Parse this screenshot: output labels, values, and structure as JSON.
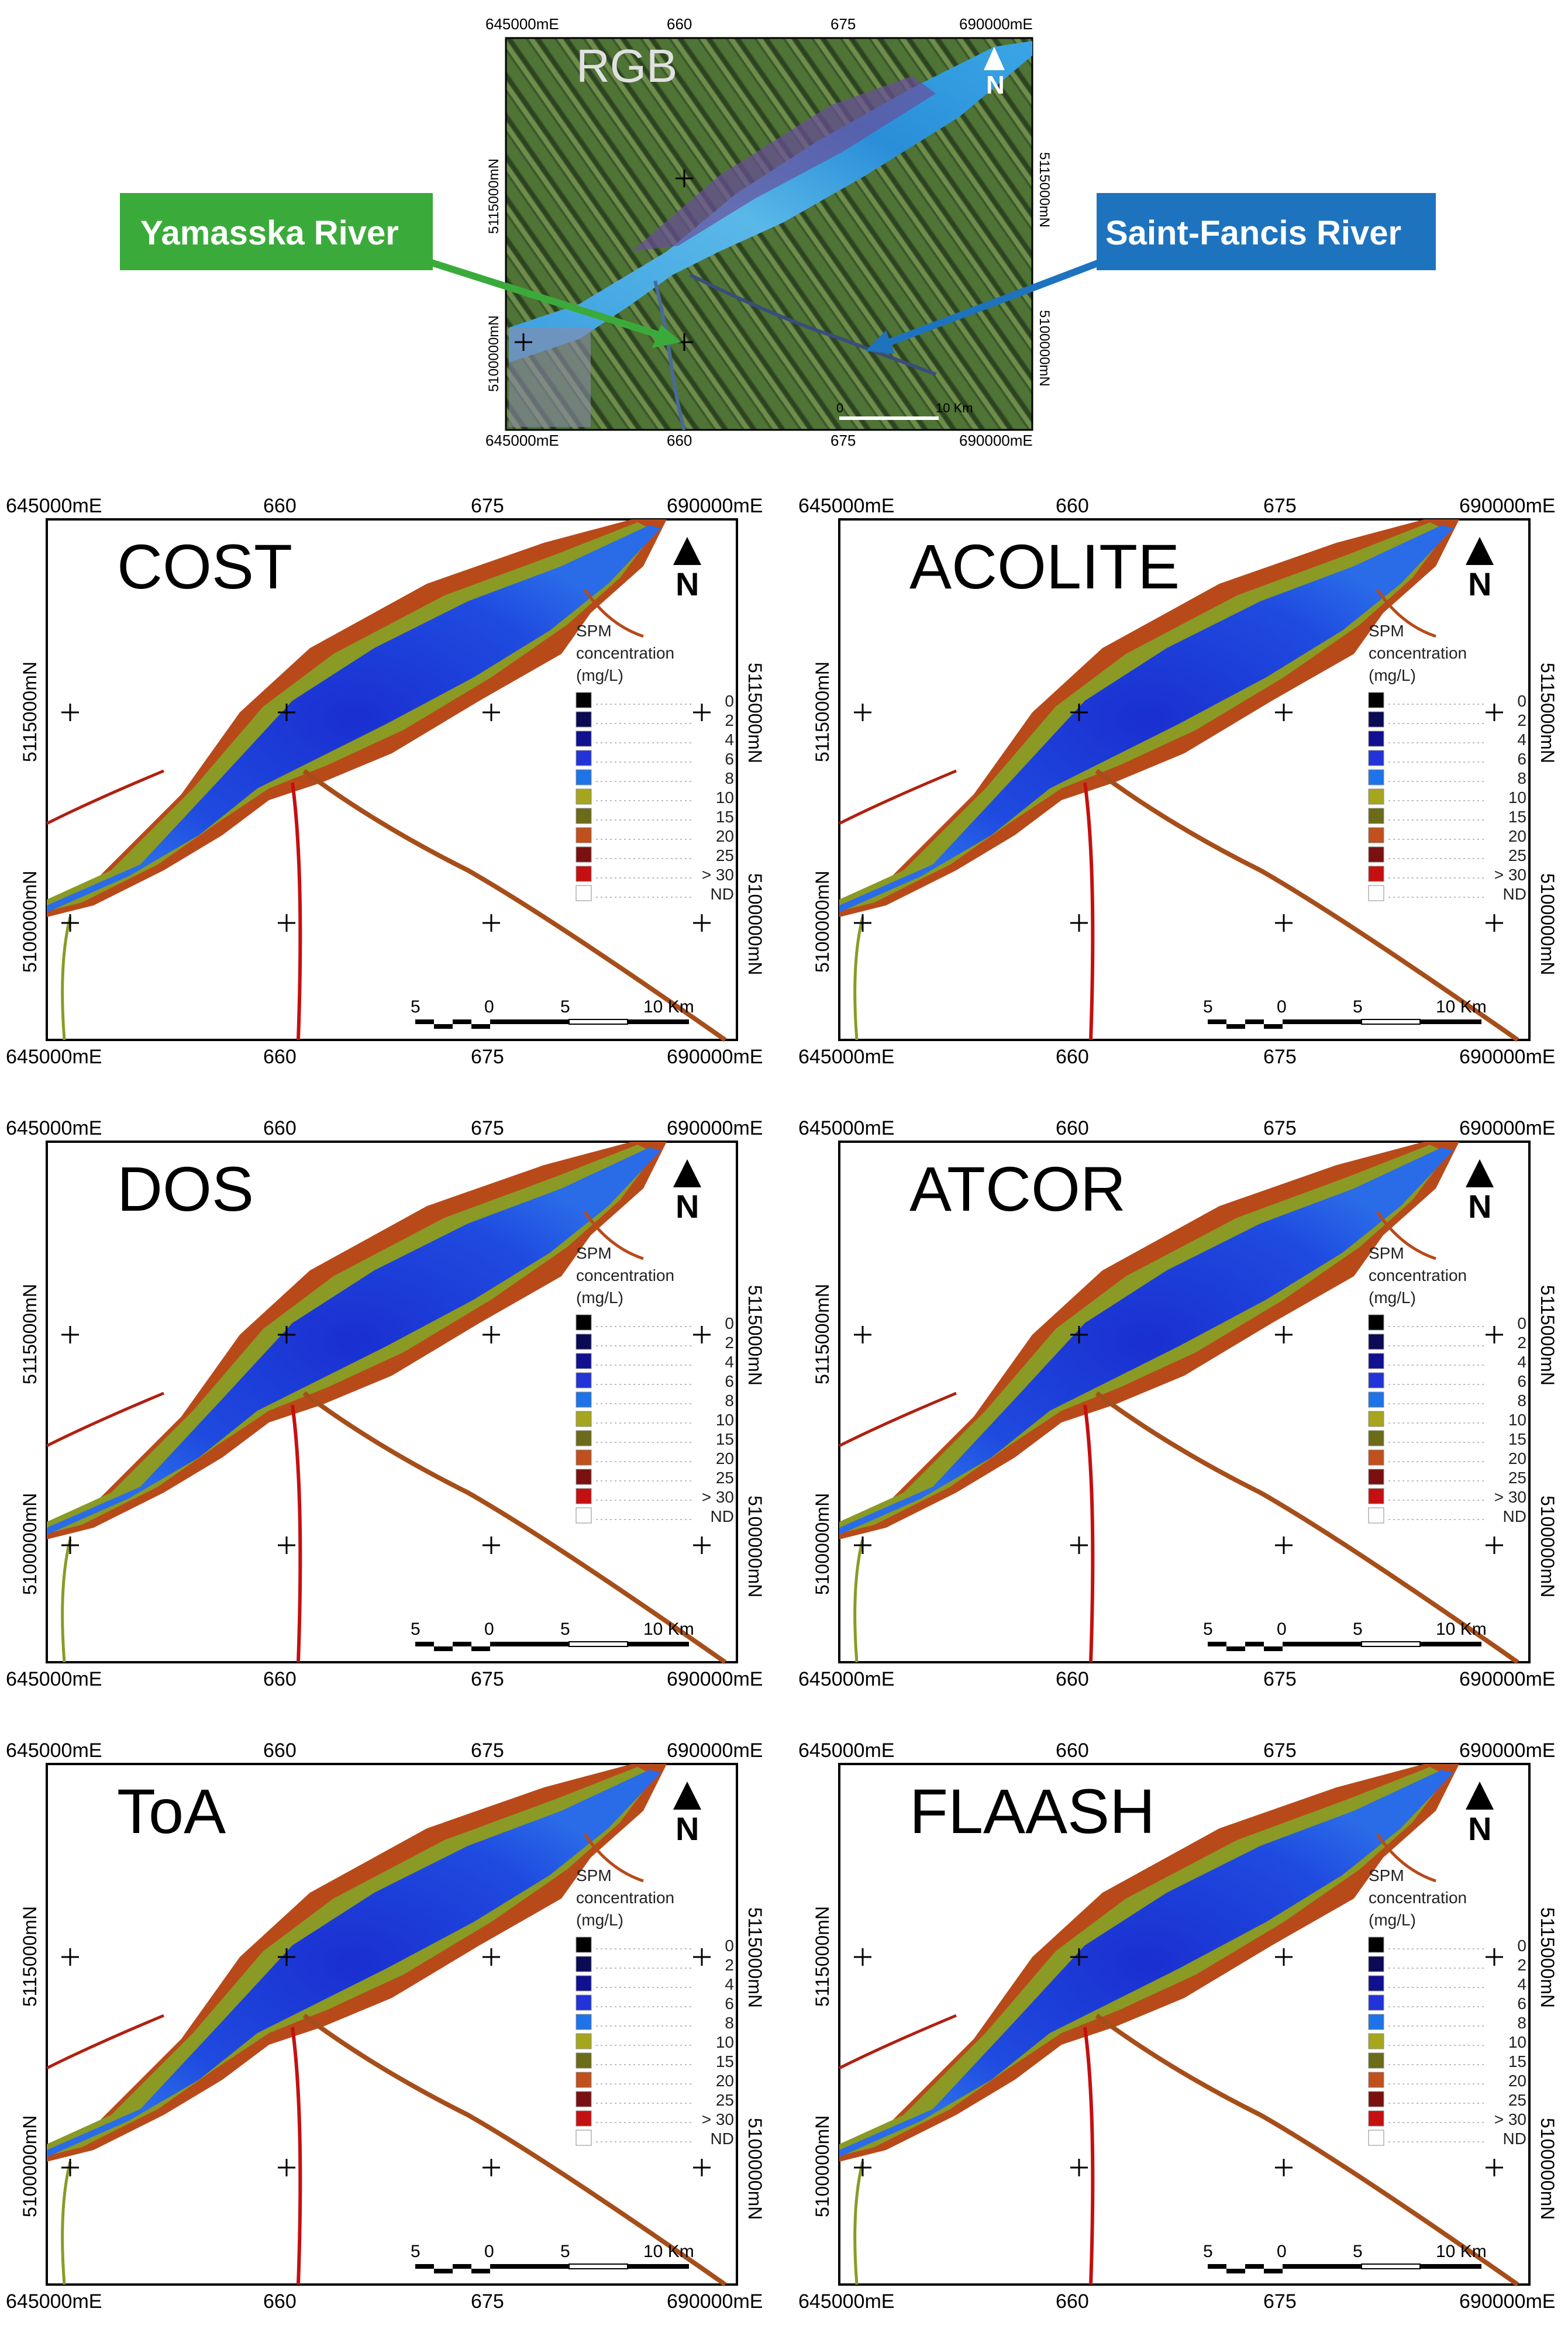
{
  "rgb_map": {
    "title": "RGB",
    "x_ticks": [
      "645000mE",
      "660",
      "675",
      "690000mE"
    ],
    "y_ticks": [
      "5115000mN",
      "5100000mN"
    ],
    "scale_labels": [
      "0",
      "10 Km"
    ],
    "callouts": {
      "left": "Yamasska River",
      "right": "Saint-Fancis River"
    },
    "colors": {
      "left_callout": "#3aab3a",
      "right_callout": "#1e73be"
    }
  },
  "panels": [
    {
      "title": "COST"
    },
    {
      "title": "ACOLITE"
    },
    {
      "title": "DOS"
    },
    {
      "title": "ATCOR"
    },
    {
      "title": "ToA"
    },
    {
      "title": "FLAASH"
    }
  ],
  "common": {
    "x_ticks": [
      "645000mE",
      "660",
      "675",
      "690000mE"
    ],
    "y_ticks": [
      "5115000mN",
      "5100000mN"
    ],
    "north_label": "N",
    "scale_labels": [
      "5",
      "0",
      "5",
      "10 Km"
    ],
    "legend": {
      "title_lines": [
        "SPM",
        "concentration",
        "(mg/L)"
      ],
      "entries": [
        {
          "label": "0",
          "color": "#000000"
        },
        {
          "label": "2",
          "color": "#0a0a55"
        },
        {
          "label": "4",
          "color": "#101090"
        },
        {
          "label": "6",
          "color": "#2233d8"
        },
        {
          "label": "8",
          "color": "#1e73e8"
        },
        {
          "label": "10",
          "color": "#a6a61e"
        },
        {
          "label": "15",
          "color": "#6b6b18"
        },
        {
          "label": "20",
          "color": "#c0501c"
        },
        {
          "label": "25",
          "color": "#7a1010"
        },
        {
          "label": "> 30",
          "color": "#c41010"
        },
        {
          "label": "ND",
          "color": "#ffffff"
        }
      ]
    }
  }
}
